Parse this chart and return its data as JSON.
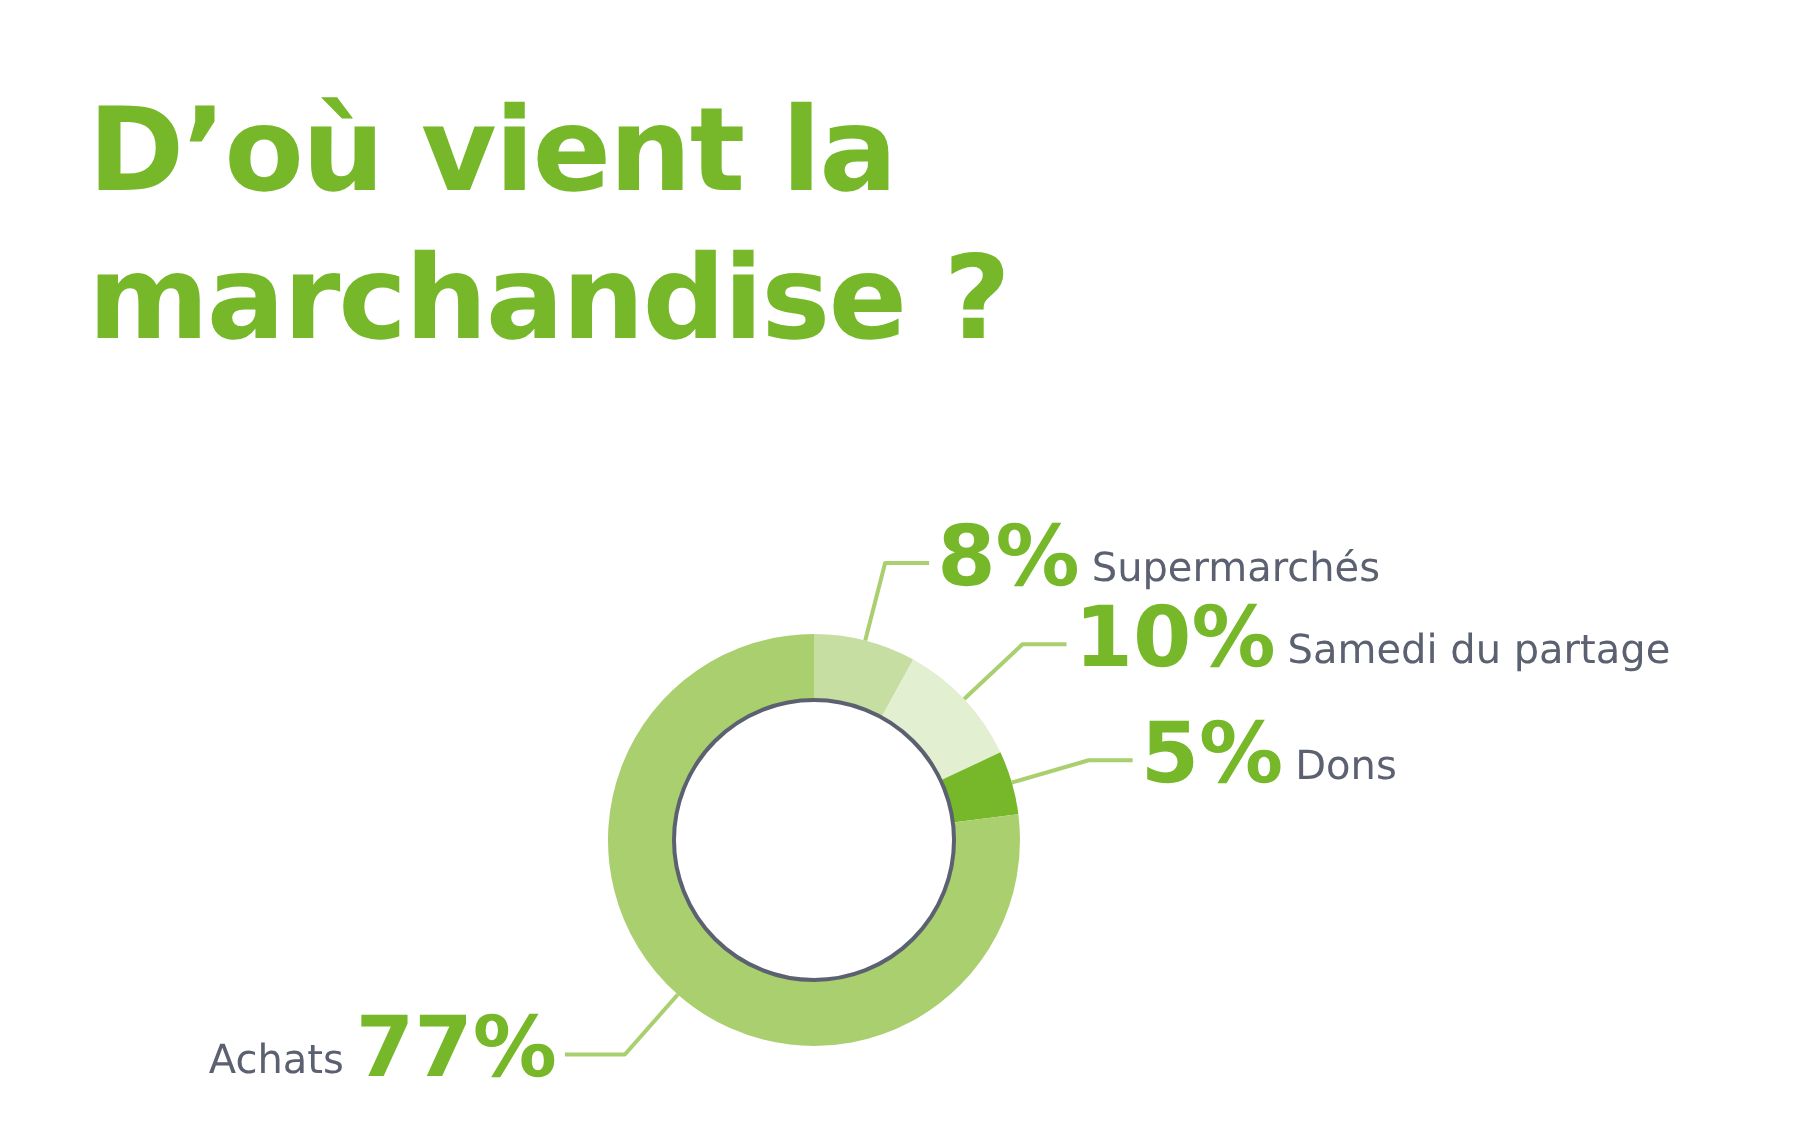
{
  "chart_data": {
    "type": "donut",
    "title": "D’où vient la marchandise ?",
    "categories": [
      "Supermarchés",
      "Samedi du partage",
      "Dons",
      "Achats"
    ],
    "values": [
      8,
      10,
      5,
      77
    ],
    "colors": [
      "#c6dea2",
      "#e3efd1",
      "#76b82a",
      "#a9cf6f"
    ],
    "value_labels": [
      "8%",
      "10%",
      "5%",
      "77%"
    ]
  }
}
